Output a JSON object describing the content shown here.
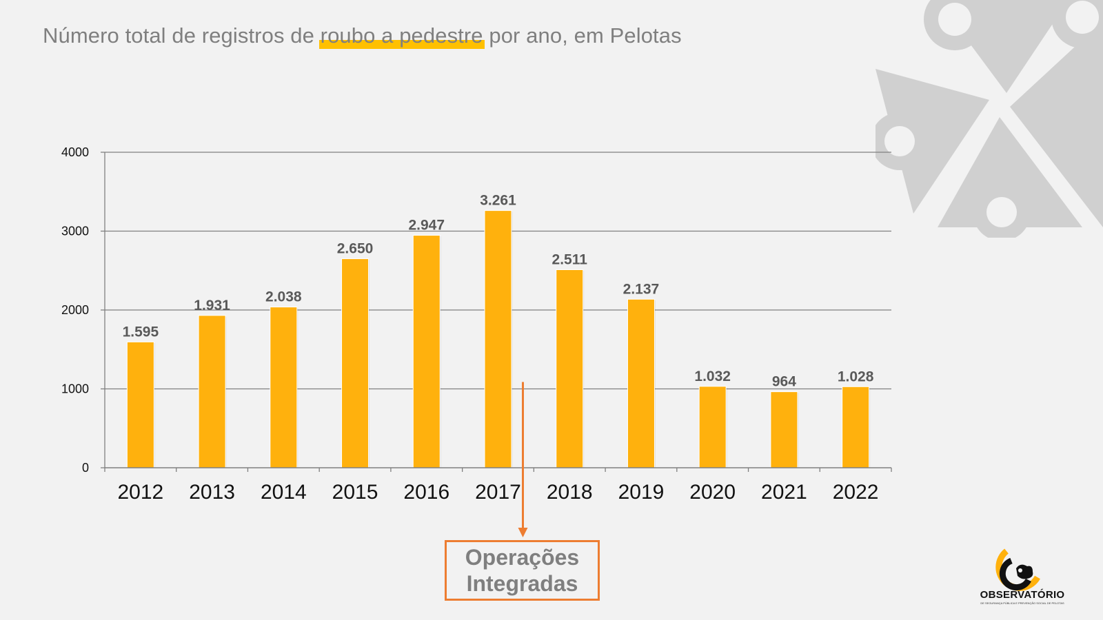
{
  "title": {
    "before": "Número total de registros de ",
    "highlight": "roubo a pedestre",
    "after": " por ano, em Pelotas"
  },
  "annotation": {
    "line1": "Operações",
    "line2": "Integradas",
    "points_to_year": "2017",
    "border_color": "#ed7d31"
  },
  "logo": {
    "name": "OBSERVATÓRIO",
    "subtitle": "DE SEGURANÇA PÚBLICA E PREVENÇÃO SOCIAL DE PELOTAS",
    "icon": "observatory-logo-icon"
  },
  "colors": {
    "bar": "#ffb10d",
    "highlight": "#ffc000",
    "accent": "#ed7d31",
    "watermark": "#d0d0d0"
  },
  "chart_data": {
    "type": "bar",
    "categories": [
      "2012",
      "2013",
      "2014",
      "2015",
      "2016",
      "2017",
      "2018",
      "2019",
      "2020",
      "2021",
      "2022"
    ],
    "values": [
      1595,
      1931,
      2038,
      2650,
      2947,
      3261,
      2511,
      2137,
      1032,
      964,
      1028
    ],
    "value_labels": [
      "1.595",
      "1.931",
      "2.038",
      "2.650",
      "2.947",
      "3.261",
      "2.511",
      "2.137",
      "1.032",
      "964",
      "1.028"
    ],
    "ylim": [
      0,
      4000
    ],
    "yticks": [
      "0",
      "1000",
      "2000",
      "3000",
      "4000"
    ],
    "grid": true,
    "legend": "none"
  }
}
